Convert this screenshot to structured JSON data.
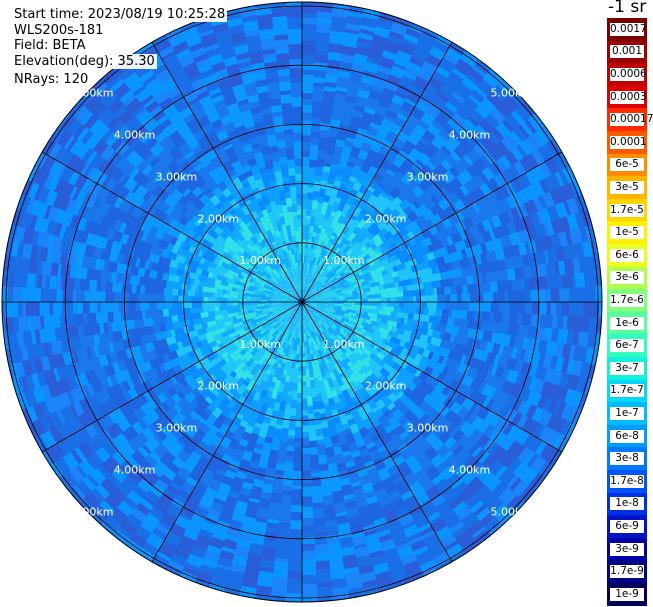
{
  "header": {
    "start_time": "Start time: 2023/08/19 10:25:28",
    "instrument": "WLS200s-181",
    "field": "Field: BETA",
    "elevation": "Elevation(deg): 35.30",
    "nrays": "NRays: 120"
  },
  "colorbar": {
    "units": "-1 sr",
    "ticks": [
      "0.0017",
      "0.001",
      "0.0006",
      "0.0003",
      "0.00017",
      "0.0001",
      "6e-5",
      "3e-5",
      "1.7e-5",
      "1e-5",
      "6e-6",
      "3e-6",
      "1.7e-6",
      "1e-6",
      "6e-7",
      "3e-7",
      "1.7e-7",
      "1e-7",
      "6e-8",
      "3e-8",
      "1.7e-8",
      "1e-8",
      "6e-9",
      "3e-9",
      "1.7e-9",
      "1e-9"
    ],
    "colors": [
      "#7a0000",
      "#9c0000",
      "#c00000",
      "#e00000",
      "#ff2a00",
      "#ff5a00",
      "#ff8c00",
      "#ffb400",
      "#ffd400",
      "#fff000",
      "#e8ff20",
      "#b0ff50",
      "#80ff80",
      "#55ff9c",
      "#30ffc0",
      "#10f0dc",
      "#00d8f4",
      "#00bcff",
      "#009cff",
      "#0078ff",
      "#0054ff",
      "#0030e6",
      "#0014c8",
      "#0000a8",
      "#000086",
      "#00005a"
    ]
  },
  "range_rings": {
    "labels": [
      "1.00km",
      "2.00km",
      "3.00km",
      "4.00km",
      "5.00km"
    ],
    "values_km": [
      1,
      2,
      3,
      4,
      5
    ]
  }
}
